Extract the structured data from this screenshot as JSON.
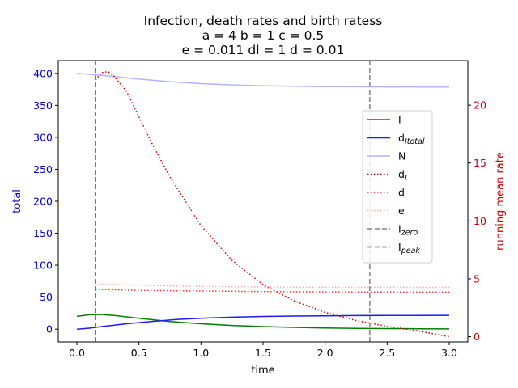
{
  "chart_data": {
    "type": "line",
    "title_lines": [
      "Infection, death rates and birth ratess",
      "a = 4   b = 1   c = 0.5",
      "e = 0.011   dl = 1   d = 0.01"
    ],
    "xlabel": "time",
    "ylabel_left": "total",
    "ylabel_right": "running mean rate",
    "xlim": [
      -0.15,
      3.15
    ],
    "ylim_left": [
      -20,
      420
    ],
    "ylim_right": [
      -0.45,
      23.85
    ],
    "x_ticks": [
      "0.0",
      "0.5",
      "1.0",
      "1.5",
      "2.0",
      "2.5",
      "3.0"
    ],
    "y_left_ticks": [
      "0",
      "50",
      "100",
      "150",
      "200",
      "250",
      "300",
      "350",
      "400"
    ],
    "y_right_ticks": [
      "0",
      "5",
      "10",
      "15",
      "20"
    ],
    "grid": false,
    "legend_position": "center-right",
    "colors": {
      "left_axis": "#0000cc",
      "right_axis": "#cc0000"
    },
    "series": [
      {
        "name": "I",
        "axis": "left",
        "color": "#008000",
        "style": "solid",
        "x": [
          0.0,
          0.1,
          0.15,
          0.2,
          0.3,
          0.5,
          0.75,
          1.0,
          1.25,
          1.5,
          1.75,
          2.0,
          2.25,
          2.5,
          2.75,
          3.0
        ],
        "y": [
          20,
          22.5,
          23,
          22.8,
          21.5,
          17,
          12,
          8.5,
          5.8,
          4,
          2.8,
          1.9,
          1.3,
          0.9,
          0.6,
          0.4
        ]
      },
      {
        "name": "d_Itotal",
        "axis": "left",
        "color": "#1a1aff",
        "style": "solid",
        "x": [
          0.0,
          0.1,
          0.2,
          0.4,
          0.6,
          0.8,
          1.0,
          1.25,
          1.5,
          1.75,
          2.0,
          2.25,
          2.5,
          2.75,
          3.0
        ],
        "y": [
          0,
          1.5,
          4,
          8.5,
          12,
          15,
          17,
          18.7,
          19.8,
          20.5,
          20.9,
          21.2,
          21.4,
          21.5,
          21.6
        ]
      },
      {
        "name": "N",
        "axis": "left",
        "color": "#b3b3ff",
        "style": "solid",
        "x": [
          0.0,
          0.25,
          0.5,
          0.75,
          1.0,
          1.25,
          1.5,
          1.75,
          2.0,
          2.25,
          2.5,
          2.75,
          3.0
        ],
        "y": [
          400,
          396,
          391,
          387,
          384,
          382,
          380.5,
          379.8,
          379.3,
          379.0,
          378.8,
          378.7,
          378.7
        ]
      },
      {
        "name": "d_I",
        "axis": "right",
        "color": "#cc0000",
        "style": "dotted",
        "x": [
          0.15,
          0.2,
          0.25,
          0.3,
          0.4,
          0.5,
          0.6,
          0.75,
          1.0,
          1.25,
          1.5,
          1.75,
          2.0,
          2.25,
          2.5,
          2.75,
          3.0
        ],
        "y": [
          22.2,
          22.8,
          22.9,
          22.5,
          21.2,
          19.0,
          16.8,
          13.8,
          9.6,
          6.6,
          4.5,
          3.1,
          2.1,
          1.4,
          0.9,
          0.5,
          0.0
        ]
      },
      {
        "name": "d",
        "axis": "right",
        "color": "#ff3333",
        "style": "dotted",
        "x": [
          0.15,
          0.5,
          1.0,
          1.5,
          2.0,
          2.5,
          3.0
        ],
        "y": [
          4.1,
          4.0,
          3.95,
          3.9,
          3.87,
          3.86,
          3.85
        ]
      },
      {
        "name": "e",
        "axis": "right",
        "color": "#ffaaaa",
        "style": "dotted",
        "x": [
          0.15,
          0.5,
          1.0,
          1.5,
          2.0,
          2.5,
          3.0
        ],
        "y": [
          4.55,
          4.45,
          4.35,
          4.3,
          4.28,
          4.27,
          4.26
        ]
      }
    ],
    "vlines": [
      {
        "name": "I_zero",
        "x": 2.36,
        "color": "#808080"
      },
      {
        "name": "I_peak",
        "x": 0.15,
        "color": "#008000"
      }
    ],
    "legend": [
      {
        "label": "I",
        "sub": "",
        "color": "#008000",
        "style": "solid"
      },
      {
        "label": "d",
        "sub": "Itotal",
        "color": "#1a1aff",
        "style": "solid"
      },
      {
        "label": "N",
        "sub": "",
        "color": "#b3b3ff",
        "style": "solid"
      },
      {
        "label": "d",
        "sub": "I",
        "color": "#cc0000",
        "style": "dotted"
      },
      {
        "label": "d",
        "sub": "",
        "color": "#ff3333",
        "style": "dotted"
      },
      {
        "label": "e",
        "sub": "",
        "color": "#ffaaaa",
        "style": "dotted"
      },
      {
        "label": "I",
        "sub": "zero",
        "color": "#808080",
        "style": "dashed"
      },
      {
        "label": "I",
        "sub": "peak",
        "color": "#008000",
        "style": "dashed"
      }
    ]
  }
}
